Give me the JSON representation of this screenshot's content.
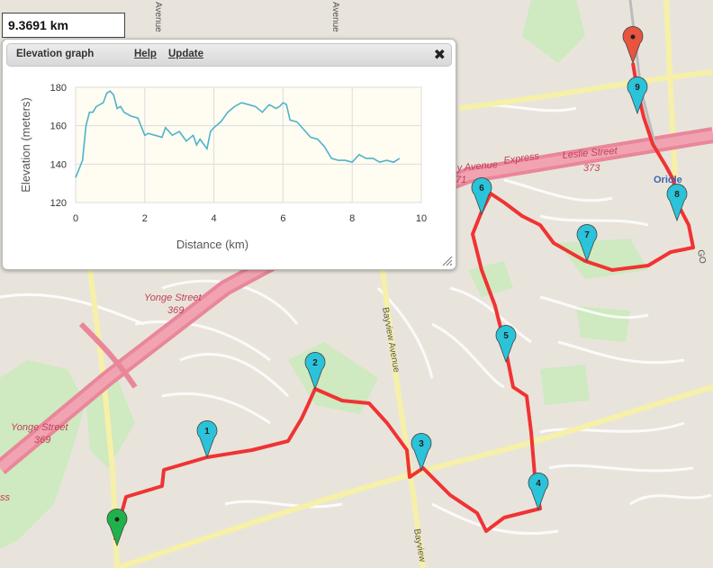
{
  "distance_readout": "9.3691 km",
  "elevation_panel": {
    "title": "Elevation graph",
    "help_label": "Help",
    "update_label": "Update",
    "close_icon": "close-icon"
  },
  "chart_data": {
    "type": "line",
    "xlabel": "Distance (km)",
    "ylabel": "Elevation (meters)",
    "xlim": [
      0,
      10
    ],
    "ylim": [
      120,
      180
    ],
    "xticks": [
      0,
      2,
      4,
      6,
      8,
      10
    ],
    "yticks": [
      120,
      140,
      160,
      180
    ],
    "grid": true,
    "line_color": "#4fb3c9",
    "plot_bg": "#fffcf2",
    "x": [
      0.0,
      0.2,
      0.3,
      0.4,
      0.5,
      0.6,
      0.8,
      0.9,
      1.0,
      1.1,
      1.2,
      1.3,
      1.4,
      1.6,
      1.8,
      2.0,
      2.1,
      2.3,
      2.5,
      2.6,
      2.8,
      3.0,
      3.2,
      3.4,
      3.5,
      3.6,
      3.8,
      3.9,
      4.0,
      4.2,
      4.4,
      4.6,
      4.8,
      5.0,
      5.2,
      5.4,
      5.6,
      5.8,
      5.9,
      6.0,
      6.1,
      6.2,
      6.4,
      6.6,
      6.8,
      7.0,
      7.2,
      7.4,
      7.6,
      7.8,
      8.0,
      8.2,
      8.4,
      8.6,
      8.8,
      9.0,
      9.2,
      9.37
    ],
    "y": [
      133,
      142,
      160,
      167,
      167,
      170,
      172,
      177,
      178,
      176,
      169,
      170,
      167,
      165,
      164,
      155,
      156,
      155,
      154,
      159,
      155,
      157,
      152,
      155,
      150,
      153,
      148,
      157,
      159,
      162,
      167,
      170,
      172,
      171,
      170,
      167,
      171,
      169,
      170,
      172,
      171,
      163,
      162,
      158,
      154,
      153,
      149,
      143,
      142,
      142,
      141,
      145,
      143,
      143,
      141,
      142,
      141,
      143
    ]
  },
  "route_colors": {
    "route": "#f03333",
    "waypoint": "#2bc3d9",
    "start": "#1fb24a",
    "end": "#e8543e"
  },
  "waypoints": [
    "1",
    "2",
    "3",
    "4",
    "5",
    "6",
    "7",
    "8",
    "9"
  ],
  "map_labels": {
    "yonge_street_1": "Yonge Street",
    "yonge_route_1": "369",
    "yonge_street_2": "Yonge Street",
    "yonge_route_2": "369",
    "bayview_1": "Bayview Avenue",
    "bayview_2": "Bayview",
    "express": "Express",
    "avenue_frag": "y Avenue",
    "avenue_frag_num": "71",
    "leslie_street": "Leslie Street",
    "leslie_route": "373",
    "oriole": "Oriole",
    "avenue_top_1": "Avenue",
    "avenue_top_2": "Avenue",
    "ss_frag": "ss",
    "go_frag": "GO"
  }
}
